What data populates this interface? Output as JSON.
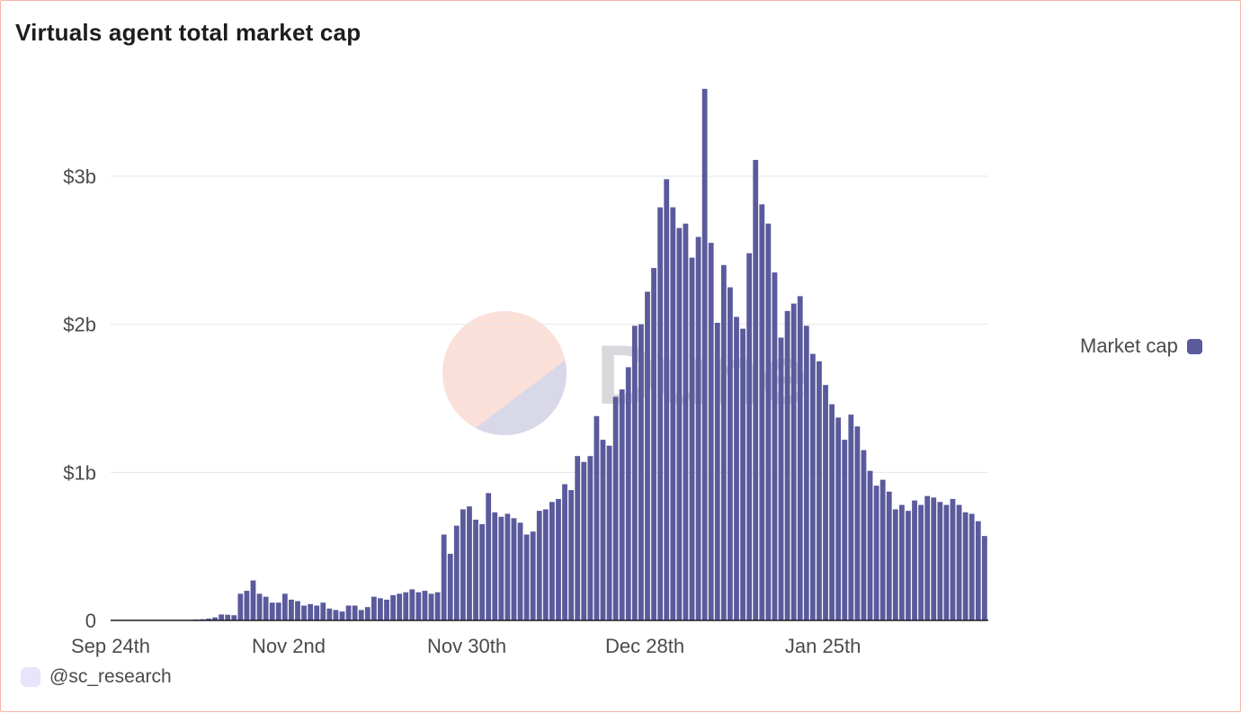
{
  "title": "Virtuals agent total market cap",
  "legend": {
    "label": "Market cap",
    "color": "#5a5a9c"
  },
  "credit": {
    "handle": "@sc_research"
  },
  "watermark": {
    "text": "Dune",
    "colors": [
      "#fbe0d9",
      "#d9d8e9"
    ]
  },
  "chart_data": {
    "type": "bar",
    "title": "Virtuals agent total market cap",
    "xlabel": "",
    "ylabel": "",
    "ylim": [
      0,
      3600000000
    ],
    "yticks": [
      0,
      1000000000,
      2000000000,
      3000000000
    ],
    "ytick_labels": [
      "0",
      "$1b",
      "$2b",
      "$3b"
    ],
    "xtick_labels": [
      "Sep 24th",
      "Nov 2nd",
      "Nov 30th",
      "Dec 28th",
      "Jan 25th"
    ],
    "grid": true,
    "legend_position": "right",
    "series": [
      {
        "name": "Market cap",
        "color": "#5a5a9c",
        "values": [
          0,
          0,
          0,
          0,
          0,
          0,
          0,
          0,
          0,
          0,
          0,
          0,
          3000000,
          6000000,
          8000000,
          12000000,
          20000000,
          40000000,
          38000000,
          35000000,
          180000000,
          200000000,
          270000000,
          180000000,
          160000000,
          120000000,
          120000000,
          180000000,
          140000000,
          130000000,
          100000000,
          110000000,
          100000000,
          120000000,
          80000000,
          70000000,
          60000000,
          100000000,
          100000000,
          70000000,
          90000000,
          160000000,
          150000000,
          140000000,
          170000000,
          180000000,
          190000000,
          210000000,
          190000000,
          200000000,
          180000000,
          190000000,
          580000000,
          450000000,
          640000000,
          750000000,
          770000000,
          680000000,
          650000000,
          860000000,
          730000000,
          700000000,
          720000000,
          690000000,
          660000000,
          580000000,
          600000000,
          740000000,
          750000000,
          800000000,
          820000000,
          920000000,
          880000000,
          1110000000,
          1070000000,
          1110000000,
          1380000000,
          1220000000,
          1180000000,
          1510000000,
          1560000000,
          1710000000,
          1990000000,
          2000000000,
          2220000000,
          2380000000,
          2790000000,
          2980000000,
          2790000000,
          2650000000,
          2680000000,
          2450000000,
          2590000000,
          3590000000,
          2550000000,
          2010000000,
          2400000000,
          2250000000,
          2050000000,
          1970000000,
          2480000000,
          3110000000,
          2810000000,
          2680000000,
          2350000000,
          1910000000,
          2090000000,
          2140000000,
          2190000000,
          1990000000,
          1800000000,
          1750000000,
          1590000000,
          1460000000,
          1370000000,
          1220000000,
          1390000000,
          1310000000,
          1150000000,
          1010000000,
          910000000,
          950000000,
          870000000,
          750000000,
          780000000,
          740000000,
          810000000,
          780000000,
          840000000,
          830000000,
          800000000,
          780000000,
          820000000,
          780000000,
          730000000,
          720000000,
          670000000,
          570000000
        ]
      }
    ]
  }
}
